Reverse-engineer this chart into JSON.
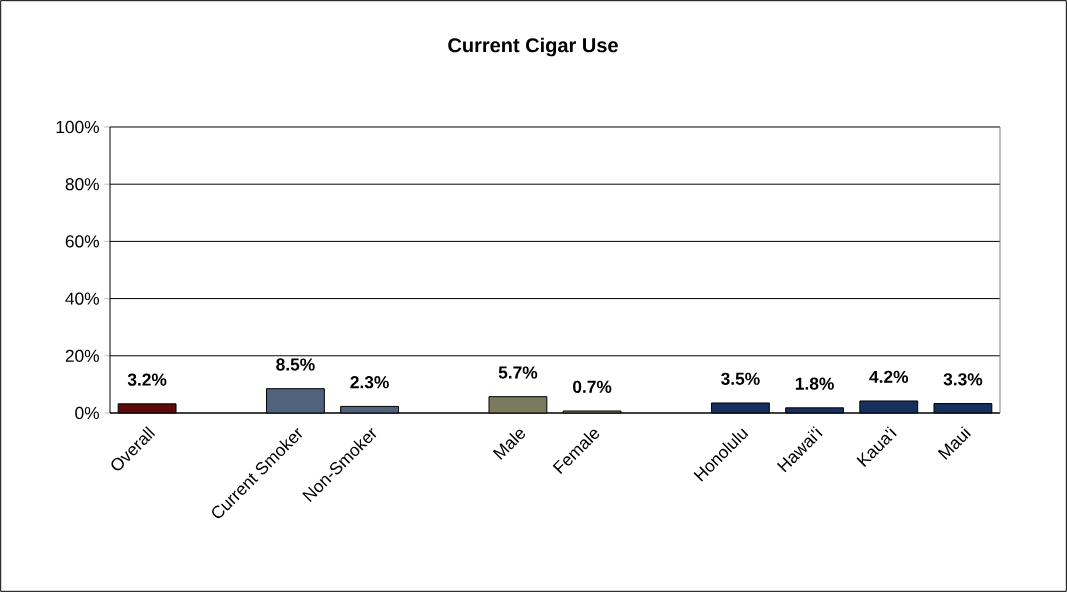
{
  "chart_data": {
    "type": "bar",
    "title": "Current Cigar Use",
    "categories": [
      "Overall",
      null,
      "Current Smoker",
      "Non-Smoker",
      null,
      "Male",
      "Female",
      null,
      "Honolulu",
      "Hawai'i",
      "Kaua'i",
      "Maui"
    ],
    "values": [
      3.2,
      null,
      8.5,
      2.3,
      null,
      5.7,
      0.7,
      null,
      3.5,
      1.8,
      4.2,
      3.3
    ],
    "colors": [
      "#5c0a0a",
      "#4f637d",
      "#4f637d",
      "#4f637d",
      "#4f637d",
      "#7a7a5e",
      "#7a7a5e",
      "#17305e",
      "#17305e",
      "#17305e",
      "#17305e",
      "#17305e"
    ],
    "value_labels": [
      "3.2%",
      null,
      "8.5%",
      "2.3%",
      null,
      "5.7%",
      "0.7%",
      null,
      "3.5%",
      "1.8%",
      "4.2%",
      "3.3%"
    ],
    "ylim": [
      0,
      100
    ],
    "yticks": [
      {
        "value": 0,
        "label": "0%"
      },
      {
        "value": 20,
        "label": "20%"
      },
      {
        "value": 40,
        "label": "40%"
      },
      {
        "value": 60,
        "label": "60%"
      },
      {
        "value": 80,
        "label": "80%"
      },
      {
        "value": 100,
        "label": "100%"
      }
    ],
    "grid": "y"
  }
}
